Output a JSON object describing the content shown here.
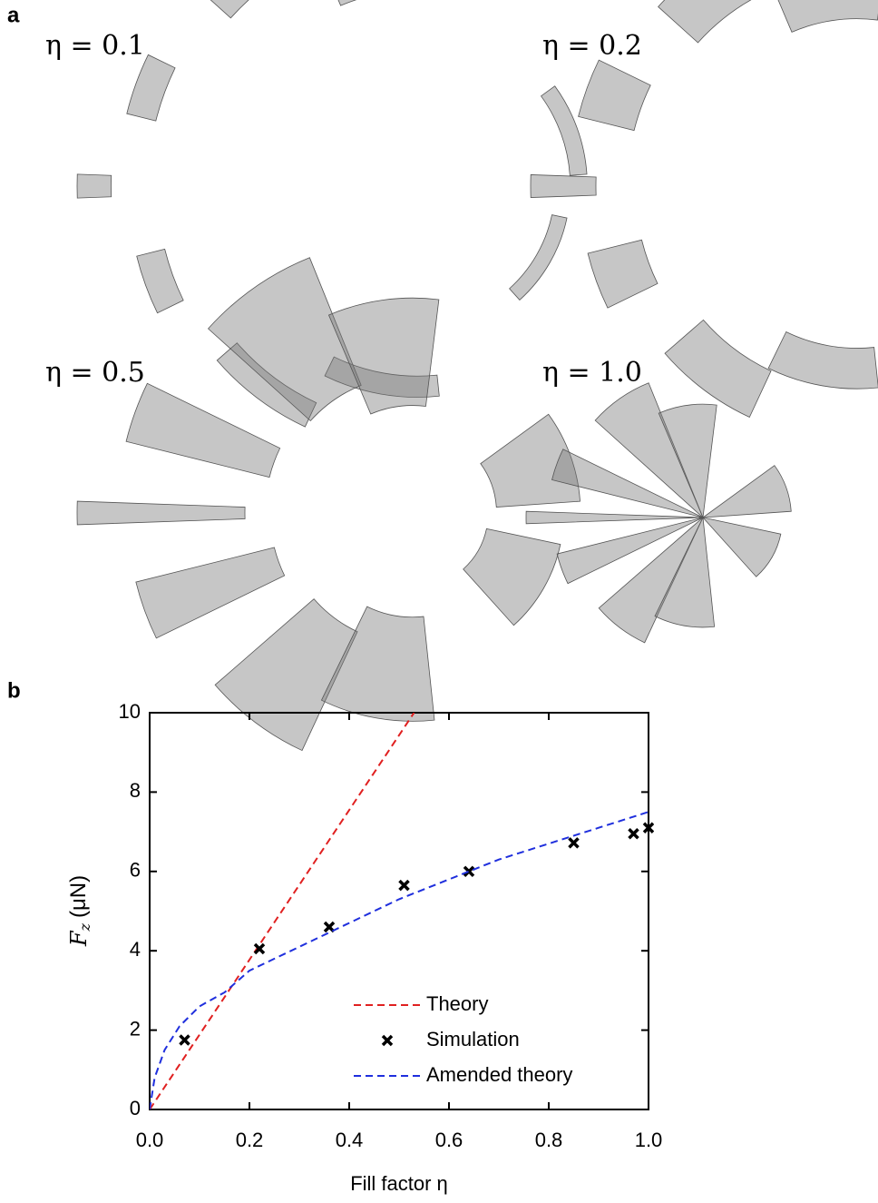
{
  "panel_a": {
    "label": "a",
    "panels": [
      {
        "title": "η = 0.1"
      },
      {
        "title": "η = 0.2"
      },
      {
        "title": "η = 0.5"
      },
      {
        "title": "η = 1.0"
      }
    ]
  },
  "panel_b": {
    "label": "b"
  },
  "chart_data": {
    "type": "line",
    "xlabel": "Fill factor η",
    "ylabel_symbol": "F",
    "ylabel_subscript": "z",
    "ylabel_unit": "(μN)",
    "xlim": [
      0,
      1.0
    ],
    "ylim": [
      0,
      10
    ],
    "xticks": [
      {
        "value": 0,
        "label": "0.0"
      },
      {
        "value": 0.2,
        "label": "0.2"
      },
      {
        "value": 0.4,
        "label": "0.4"
      },
      {
        "value": 0.6,
        "label": "0.6"
      },
      {
        "value": 0.8,
        "label": "0.8"
      },
      {
        "value": 1.0,
        "label": "1.0"
      }
    ],
    "yticks": [
      0,
      2,
      4,
      6,
      8,
      10
    ],
    "legend": "lower right",
    "series": [
      {
        "name": "Theory",
        "color": "#e02020",
        "style": "dashed",
        "x": [
          0,
          0.53
        ],
        "values": [
          0,
          10
        ]
      },
      {
        "name": "Simulation",
        "color": "#000000",
        "style": "markers",
        "x": [
          0.07,
          0.22,
          0.36,
          0.51,
          0.64,
          0.85,
          0.97,
          1.0
        ],
        "values": [
          1.75,
          4.05,
          4.6,
          5.65,
          6.0,
          6.72,
          6.95,
          7.1
        ]
      },
      {
        "name": "Amended theory",
        "color": "#1f2fdd",
        "style": "dashed",
        "x": [
          0,
          0.01,
          0.03,
          0.06,
          0.1,
          0.15,
          0.2,
          0.3,
          0.4,
          0.5,
          0.6,
          0.7,
          0.8,
          0.9,
          1.0
        ],
        "values": [
          0,
          0.8,
          1.5,
          2.1,
          2.6,
          2.95,
          3.5,
          4.1,
          4.7,
          5.3,
          5.8,
          6.3,
          6.7,
          7.1,
          7.5
        ]
      }
    ]
  }
}
